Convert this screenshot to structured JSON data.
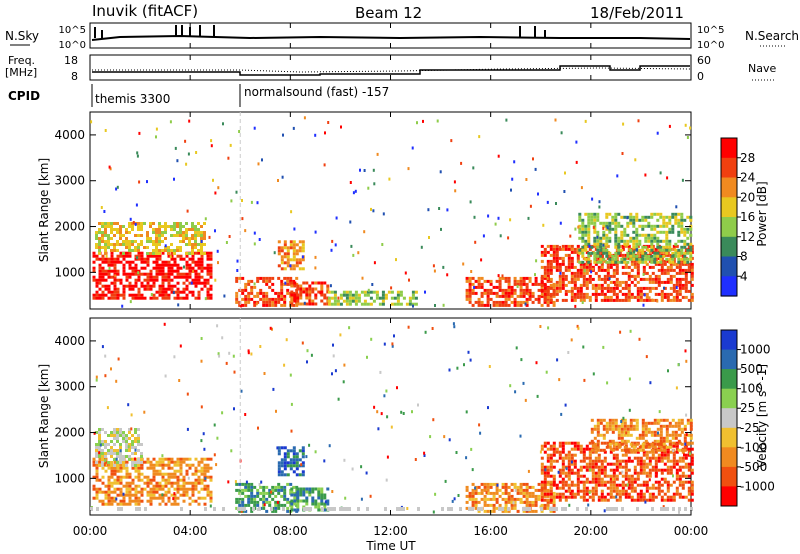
{
  "header": {
    "station": "Inuvik (fitACF)",
    "beam": "Beam 12",
    "date": "18/Feb/2011"
  },
  "top_panels": {
    "nsky_label": "N.Sky",
    "nsky_ticks": [
      "10^5",
      "10^0"
    ],
    "nsearch_label": "N.Search",
    "nsearch_ticks": [
      "10^5",
      "10^0"
    ],
    "freq_label_line1": "Freq.",
    "freq_label_line2": "[MHz]",
    "freq_ticks": [
      "18",
      "8"
    ],
    "nave_label": "Nave",
    "nave_ticks": [
      "60",
      "0"
    ],
    "cpid_label": "CPID",
    "cpid_segments": [
      "themis 3300",
      "normalsound (fast) -157"
    ]
  },
  "chart_data": [
    {
      "type": "heatmap",
      "title": "",
      "ylabel": "Slant Range [km]",
      "xlabel": "",
      "yticks": [
        "1000",
        "2000",
        "3000",
        "4000"
      ],
      "ylim": [
        200,
        4500
      ],
      "xlim": [
        0,
        24
      ],
      "colorbar_label": "Power [dB]",
      "colorbar_ticks": [
        "4",
        "8",
        "12",
        "16",
        "20",
        "24",
        "28"
      ],
      "colorbar_colors": [
        "#1f2fff",
        "#2050b0",
        "#3a8a5a",
        "#8fcc4a",
        "#e8c820",
        "#f08a20",
        "#f04010",
        "#ff0000"
      ],
      "patches": [
        {
          "t0": 0.1,
          "t1": 4.8,
          "r0": 450,
          "r1": 1450,
          "level": 7
        },
        {
          "t0": 0.2,
          "t1": 4.6,
          "r0": 1400,
          "r1": 2100,
          "level": 4
        },
        {
          "t0": 5.8,
          "t1": 8.2,
          "r0": 300,
          "r1": 900,
          "level": 6
        },
        {
          "t0": 8.0,
          "t1": 9.5,
          "r0": 300,
          "r1": 800,
          "level": 6
        },
        {
          "t0": 7.5,
          "t1": 8.5,
          "r0": 1100,
          "r1": 1700,
          "level": 5
        },
        {
          "t0": 9.5,
          "t1": 13.0,
          "r0": 300,
          "r1": 600,
          "level": 3
        },
        {
          "t0": 15.0,
          "t1": 18.5,
          "r0": 300,
          "r1": 900,
          "level": 6
        },
        {
          "t0": 18.0,
          "t1": 24.0,
          "r0": 400,
          "r1": 1600,
          "level": 6
        },
        {
          "t0": 19.5,
          "t1": 24.0,
          "r0": 1200,
          "r1": 2300,
          "level": 3
        }
      ]
    },
    {
      "type": "heatmap",
      "title": "",
      "ylabel": "Slant Range [km]",
      "xlabel": "Time UT",
      "xticks": [
        "00:00",
        "04:00",
        "08:00",
        "12:00",
        "16:00",
        "20:00",
        "00:00"
      ],
      "yticks": [
        "1000",
        "2000",
        "3000",
        "4000"
      ],
      "ylim": [
        200,
        4500
      ],
      "xlim": [
        0,
        24
      ],
      "colorbar_label": "Velocity [m s^-1]",
      "colorbar_ticks": [
        "1000",
        "500",
        "100",
        "25",
        "-25",
        "-100",
        "-500",
        "-1000"
      ],
      "colorbar_colors": [
        "#1a3ad0",
        "#2a6ab0",
        "#3a9a4a",
        "#8ad050",
        "#c8c8c8",
        "#f0c030",
        "#f08a20",
        "#f05010",
        "#ff0000"
      ],
      "patches": [
        {
          "t0": 0.1,
          "t1": 4.8,
          "r0": 450,
          "r1": 1450,
          "level": 6
        },
        {
          "t0": 0.2,
          "t1": 2.0,
          "r0": 1300,
          "r1": 2100,
          "level": 4
        },
        {
          "t0": 5.8,
          "t1": 8.2,
          "r0": 300,
          "r1": 900,
          "level": 2
        },
        {
          "t0": 8.0,
          "t1": 9.5,
          "r0": 300,
          "r1": 800,
          "level": 2
        },
        {
          "t0": 7.5,
          "t1": 8.5,
          "r0": 1100,
          "r1": 1700,
          "level": 1
        },
        {
          "t0": 15.0,
          "t1": 18.5,
          "r0": 300,
          "r1": 900,
          "level": 6
        },
        {
          "t0": 18.0,
          "t1": 24.0,
          "r0": 500,
          "r1": 1800,
          "level": 7
        },
        {
          "t0": 20.0,
          "t1": 24.0,
          "r0": 1600,
          "r1": 2300,
          "level": 6
        }
      ]
    }
  ]
}
